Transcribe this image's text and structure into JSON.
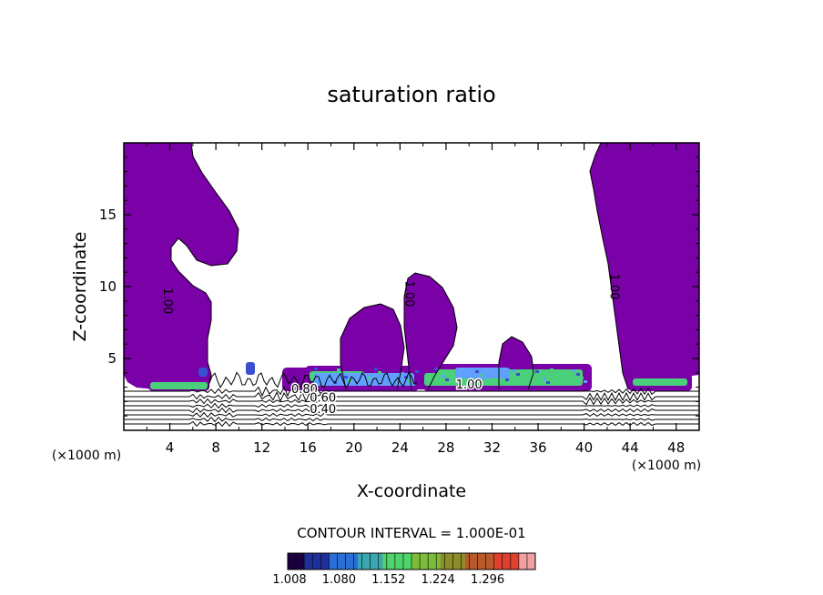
{
  "chart_data": {
    "type": "contour",
    "title": "saturation ratio",
    "xlabel": "X-coordinate",
    "ylabel": "Z-coordinate",
    "x_unit": "(×1000 m)",
    "z_unit": "(×1000 m)",
    "xlim": [
      0,
      50
    ],
    "ylim": [
      0,
      20
    ],
    "x_ticks": [
      4,
      8,
      12,
      16,
      20,
      24,
      28,
      32,
      36,
      40,
      44,
      48
    ],
    "y_ticks": [
      5,
      10,
      15
    ],
    "contour_interval_text": "CONTOUR INTERVAL = 1.000E-01",
    "contour_labels": [
      {
        "text": "1.00",
        "x": 3.5,
        "z": 9.0
      },
      {
        "text": "1.00",
        "x": 24.5,
        "z": 9.5
      },
      {
        "text": "1.00",
        "x": 42.3,
        "z": 10.0
      },
      {
        "text": "1.00",
        "x": 30.0,
        "z": 2.9
      },
      {
        "text": "0.80",
        "x": 15.7,
        "z": 2.6
      },
      {
        "text": "0.60",
        "x": 17.3,
        "z": 2.0
      },
      {
        "text": "0.40",
        "x": 17.3,
        "z": 1.2
      }
    ],
    "colorbar": {
      "tick_labels": [
        "1.008",
        "1.080",
        "1.152",
        "1.224",
        "1.296"
      ],
      "colormap": [
        "#1a0040",
        "#1f2f99",
        "#2a6fd6",
        "#3aa8b0",
        "#4dd46a",
        "#7dbb3a",
        "#8c8c2a",
        "#b85a2a",
        "#e04030",
        "#f0a0a0"
      ]
    },
    "fill_color": "#7a00a8",
    "supersat_colors": [
      "#3a4fd0",
      "#4ad07a",
      "#60a0ff"
    ]
  }
}
